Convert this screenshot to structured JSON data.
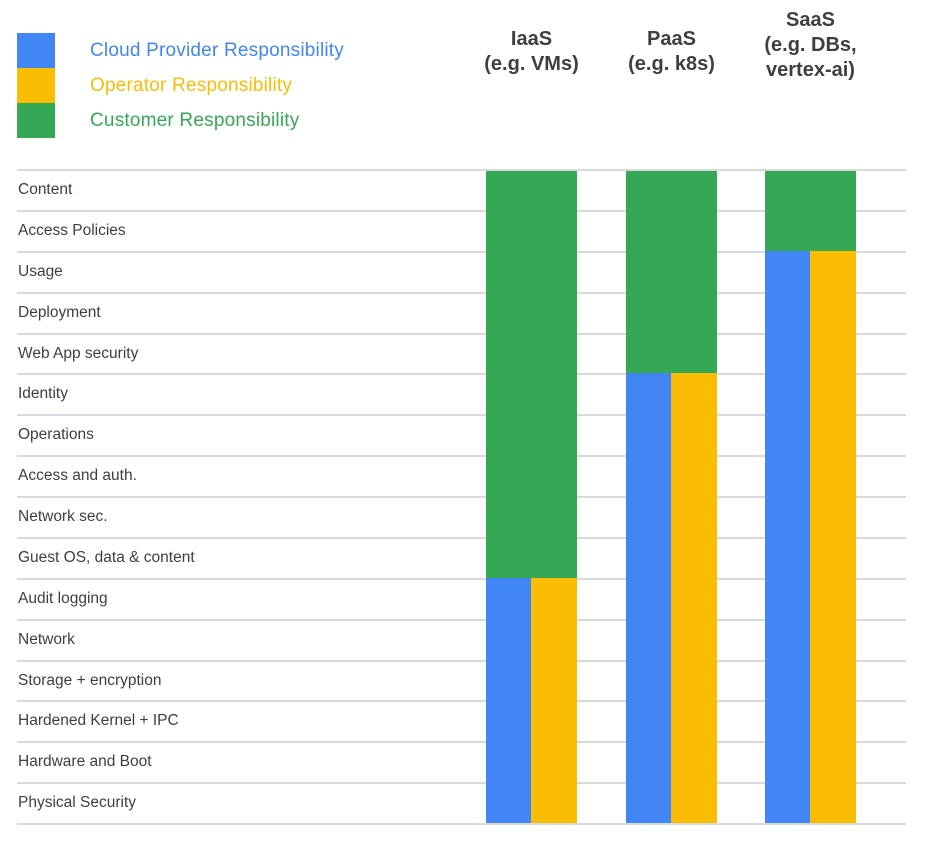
{
  "colors": {
    "provider_blue": "#4285f4",
    "operator_yellow": "#fbbc04",
    "customer_green": "#34a853",
    "gridline_gray": "#d7d9dc",
    "label_text": "#3c4043"
  },
  "legend": {
    "items": [
      {
        "role": "provider",
        "label": "Cloud Provider Responsibility"
      },
      {
        "role": "operator",
        "label": "Operator Responsibility"
      },
      {
        "role": "customer",
        "label": "Customer Responsibility"
      }
    ]
  },
  "chart_data": {
    "type": "stacked-bar-responsibility-matrix",
    "legend_position": "top-left",
    "rows": [
      "Content",
      "Access Policies",
      "Usage",
      "Deployment",
      "Web App security",
      "Identity",
      "Operations",
      "Access and auth.",
      "Network sec.",
      "Guest OS, data & content",
      "Audit logging",
      "Network",
      "Storage + encryption",
      "Hardened Kernel + IPC",
      "Hardware and Boot",
      "Physical Security"
    ],
    "columns": [
      {
        "id": "iaas",
        "header": "IaaS\n(e.g. VMs)",
        "customer_rows": 10,
        "provider_operator_rows": 6
      },
      {
        "id": "paas",
        "header": "PaaS\n(e.g. k8s)",
        "customer_rows": 5,
        "provider_operator_rows": 11
      },
      {
        "id": "saas",
        "header": "SaaS\n(e.g. DBs,\nvertex-ai)",
        "customer_rows": 2,
        "provider_operator_rows": 14
      }
    ]
  }
}
